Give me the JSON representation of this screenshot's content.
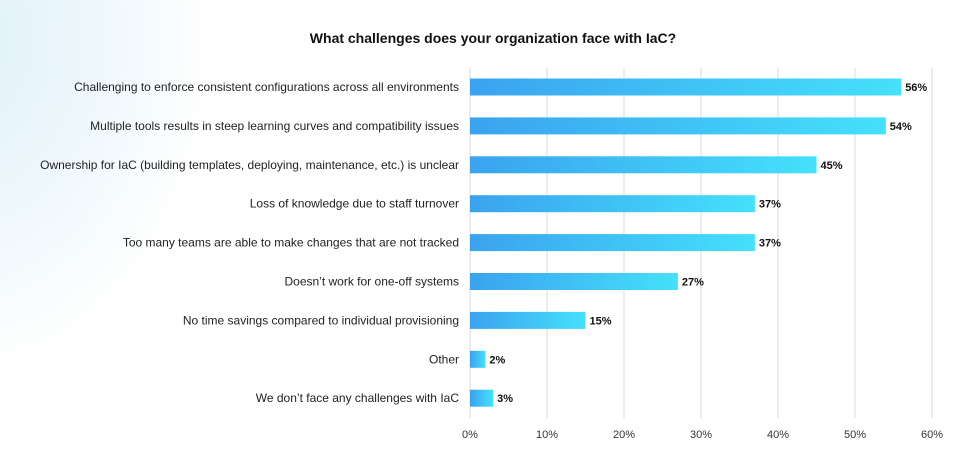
{
  "chart_data": {
    "type": "bar",
    "orientation": "horizontal",
    "title": "What challenges does your organization face with IaC?",
    "categories": [
      "Challenging to enforce consistent configurations across all environments",
      "Multiple tools results in steep learning curves and compatibility issues",
      "Ownership for IaC (building templates, deploying, maintenance, etc.) is unclear",
      "Loss of knowledge due to staff turnover",
      "Too many teams are able to make changes that are not tracked",
      "Doesn’t work for one-off systems",
      "No time savings compared to individual provisioning",
      "Other",
      "We don’t face any challenges with IaC"
    ],
    "values": [
      56,
      54,
      45,
      37,
      37,
      27,
      15,
      2,
      3
    ],
    "value_labels": [
      "56%",
      "54%",
      "45%",
      "37%",
      "37%",
      "27%",
      "15%",
      "2%",
      "3%"
    ],
    "xlim": [
      0,
      60
    ],
    "xticks": [
      0,
      10,
      20,
      30,
      40,
      50,
      60
    ],
    "xtick_labels": [
      "0%",
      "10%",
      "20%",
      "30%",
      "40%",
      "50%",
      "60%"
    ],
    "xlabel": "",
    "ylabel": "",
    "grid": true,
    "bar_gradient": [
      "#3aa3ef",
      "#45e0fb"
    ]
  }
}
